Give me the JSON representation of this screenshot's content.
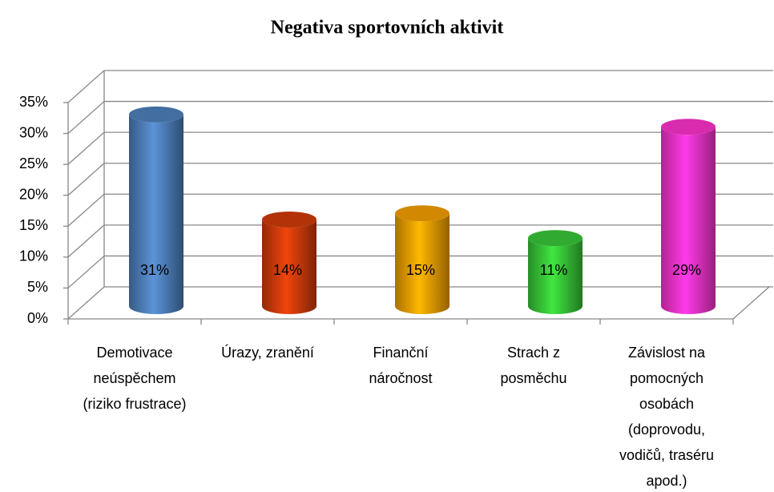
{
  "chart_data": {
    "type": "bar3d",
    "title": "Negativa sportovních aktivit",
    "categories": [
      "Demotivace neúspěchem (riziko frustrace)",
      "Úrazy, zranění",
      "Finanční náročnost",
      "Strach z posměchu",
      "Závislost na pomocných osobách (doprovodu, vodičů, traséru apod.)"
    ],
    "values": [
      31,
      14,
      15,
      11,
      29
    ],
    "value_labels": [
      "31%",
      "14%",
      "15%",
      "11%",
      "29%"
    ],
    "colors": [
      "#4f81bd",
      "#d23c0a",
      "#f7a000",
      "#38c838",
      "#ff33cc"
    ],
    "ylim": [
      0,
      35
    ],
    "yticks": [
      {
        "value": 0,
        "label": "0%"
      },
      {
        "value": 5,
        "label": "5%"
      },
      {
        "value": 10,
        "label": "10%"
      },
      {
        "value": 15,
        "label": "15%"
      },
      {
        "value": 20,
        "label": "20%"
      },
      {
        "value": 25,
        "label": "25%"
      },
      {
        "value": 30,
        "label": "30%"
      },
      {
        "value": 35,
        "label": "35%"
      }
    ],
    "grid": true
  }
}
